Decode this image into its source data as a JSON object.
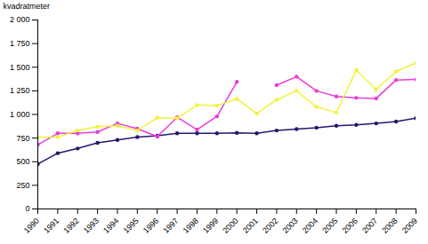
{
  "chart_data": {
    "type": "line",
    "y_label": "kvadratmeter",
    "x": [
      1990,
      1991,
      1992,
      1993,
      1994,
      1995,
      1996,
      1997,
      1998,
      1999,
      2000,
      2001,
      2002,
      2003,
      2004,
      2005,
      2006,
      2007,
      2008,
      2009
    ],
    "series": [
      {
        "color": "#1f1a6e",
        "marker": "circle",
        "values": [
          475,
          590,
          640,
          700,
          730,
          760,
          775,
          800,
          800,
          800,
          805,
          800,
          830,
          845,
          860,
          880,
          890,
          905,
          925,
          960
        ]
      },
      {
        "color": "#e83cd8",
        "marker": "circle",
        "values": [
          680,
          800,
          800,
          815,
          905,
          850,
          765,
          970,
          840,
          980,
          1345,
          null,
          1310,
          1400,
          1250,
          1190,
          1175,
          1170,
          1365,
          1370
        ]
      },
      {
        "color": "#f2f23a",
        "marker": "circle",
        "values": [
          760,
          760,
          830,
          870,
          880,
          830,
          965,
          960,
          1100,
          1095,
          1165,
          1010,
          1155,
          1250,
          1080,
          1020,
          1470,
          1265,
          1455,
          1545
        ]
      }
    ],
    "xlim": [
      1990,
      2009
    ],
    "xticks": [
      1990,
      1991,
      1992,
      1993,
      1994,
      1995,
      1996,
      1997,
      1998,
      1999,
      2000,
      2001,
      2002,
      2003,
      2004,
      2005,
      2006,
      2007,
      2008,
      2009
    ],
    "ylim": [
      0,
      2000
    ],
    "yticks": [
      0,
      250,
      500,
      750,
      {
        "value": 1000,
        "label": "1 000"
      },
      {
        "value": 1250,
        "label": "1 250"
      },
      {
        "value": 1500,
        "label": "1 500"
      },
      {
        "value": 1750,
        "label": "1 750"
      },
      {
        "value": 2000,
        "label": "2 000"
      }
    ],
    "grid": false
  }
}
